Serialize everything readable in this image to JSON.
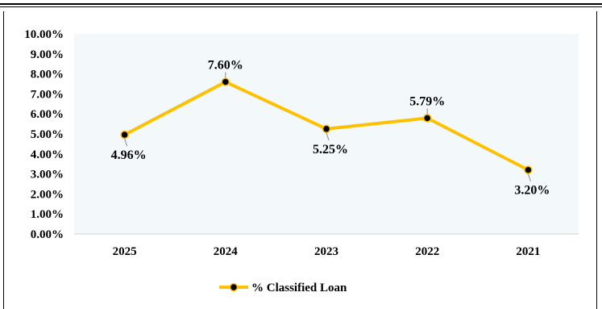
{
  "chart_data": {
    "type": "line",
    "categories": [
      "2025",
      "2024",
      "2023",
      "2022",
      "2021"
    ],
    "series": [
      {
        "name": "% Classified Loan",
        "values": [
          4.96,
          7.6,
          5.25,
          5.79,
          3.2
        ],
        "labels": [
          "4.96%",
          "7.60%",
          "5.25%",
          "5.79%",
          "3.20%"
        ],
        "label_positions": [
          "below",
          "above",
          "below",
          "above",
          "below"
        ]
      }
    ],
    "yticks": [
      "0.00%",
      "1.00%",
      "2.00%",
      "3.00%",
      "4.00%",
      "5.00%",
      "6.00%",
      "7.00%",
      "8.00%",
      "9.00%",
      "10.00%"
    ],
    "ylim": [
      0,
      10
    ],
    "legend_position": "bottom",
    "grid": false,
    "colors": {
      "line": "#FFC000",
      "marker": "#000000",
      "plot_bg": "#F3F8FB"
    }
  }
}
